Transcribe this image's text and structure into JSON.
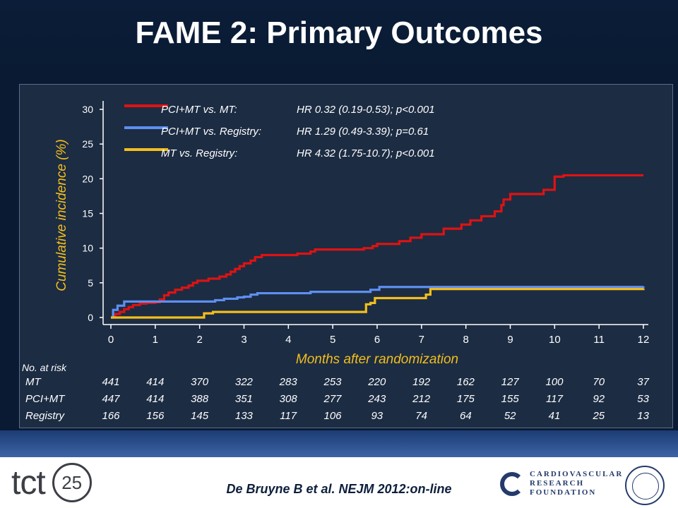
{
  "title": "FAME 2: Primary Outcomes",
  "colors": {
    "red": "#dd1313",
    "blue": "#5e8ff0",
    "gold": "#f3be1c",
    "axis_label": "#f3be1c",
    "text": "#ffffff"
  },
  "legend": [
    {
      "series": "PCI+MT vs. MT:",
      "stat": "HR 0.32 (0.19-0.53); p<0.001",
      "color": "#dd1313"
    },
    {
      "series": "PCI+MT vs. Registry:",
      "stat": "HR 1.29 (0.49-3.39); p=0.61",
      "color": "#5e8ff0"
    },
    {
      "series": "MT vs. Registry:",
      "stat": "HR 4.32 (1.75-10.7); p<0.001",
      "color": "#f3be1c"
    }
  ],
  "chart_data": {
    "type": "line",
    "xlabel": "Months after randomization",
    "ylabel": "Cumulative incidence (%)",
    "xlim": [
      0,
      12
    ],
    "ylim": [
      0,
      30
    ],
    "x_ticks": [
      "0",
      "1",
      "2",
      "3",
      "4",
      "5",
      "6",
      "7",
      "8",
      "9",
      "10",
      "11",
      "12"
    ],
    "y_ticks": [
      "0",
      "5",
      "10",
      "15",
      "20",
      "25",
      "30"
    ],
    "series": [
      {
        "name": "MT",
        "color": "#dd1313",
        "points": [
          [
            0,
            0
          ],
          [
            0.1,
            0.5
          ],
          [
            0.2,
            0.8
          ],
          [
            0.3,
            1.2
          ],
          [
            0.4,
            1.5
          ],
          [
            0.5,
            1.8
          ],
          [
            0.65,
            2.0
          ],
          [
            0.8,
            2.1
          ],
          [
            1.0,
            2.2
          ],
          [
            1.1,
            2.6
          ],
          [
            1.2,
            3.2
          ],
          [
            1.3,
            3.6
          ],
          [
            1.45,
            4.0
          ],
          [
            1.6,
            4.3
          ],
          [
            1.75,
            4.6
          ],
          [
            1.85,
            5.0
          ],
          [
            1.95,
            5.3
          ],
          [
            2.2,
            5.6
          ],
          [
            2.45,
            5.9
          ],
          [
            2.6,
            6.2
          ],
          [
            2.7,
            6.6
          ],
          [
            2.8,
            7.0
          ],
          [
            2.9,
            7.4
          ],
          [
            3.0,
            7.8
          ],
          [
            3.15,
            8.2
          ],
          [
            3.25,
            8.7
          ],
          [
            3.4,
            9.0
          ],
          [
            4.2,
            9.2
          ],
          [
            4.5,
            9.5
          ],
          [
            4.6,
            9.8
          ],
          [
            5.7,
            10.0
          ],
          [
            5.9,
            10.3
          ],
          [
            6.0,
            10.6
          ],
          [
            6.5,
            11.0
          ],
          [
            6.75,
            11.5
          ],
          [
            7.0,
            12.0
          ],
          [
            7.5,
            12.8
          ],
          [
            7.9,
            13.4
          ],
          [
            8.1,
            14.0
          ],
          [
            8.35,
            14.6
          ],
          [
            8.65,
            15.3
          ],
          [
            8.8,
            16.2
          ],
          [
            8.85,
            17.0
          ],
          [
            9.0,
            17.8
          ],
          [
            9.75,
            18.4
          ],
          [
            10.0,
            20.3
          ],
          [
            10.2,
            20.5
          ],
          [
            12.0,
            20.5
          ]
        ]
      },
      {
        "name": "PCI+MT",
        "color": "#5e8ff0",
        "points": [
          [
            0,
            0
          ],
          [
            0.05,
            1.1
          ],
          [
            0.15,
            1.7
          ],
          [
            0.3,
            2.3
          ],
          [
            2.35,
            2.5
          ],
          [
            2.55,
            2.7
          ],
          [
            2.85,
            2.9
          ],
          [
            3.0,
            3.0
          ],
          [
            3.15,
            3.3
          ],
          [
            3.3,
            3.5
          ],
          [
            4.5,
            3.7
          ],
          [
            5.85,
            4.0
          ],
          [
            6.05,
            4.4
          ],
          [
            12.0,
            4.5
          ]
        ]
      },
      {
        "name": "Registry",
        "color": "#f3be1c",
        "points": [
          [
            0,
            0
          ],
          [
            2.1,
            0.6
          ],
          [
            2.3,
            0.8
          ],
          [
            5.75,
            1.9
          ],
          [
            5.85,
            2.1
          ],
          [
            5.95,
            2.8
          ],
          [
            7.1,
            3.3
          ],
          [
            7.2,
            4.1
          ],
          [
            12.0,
            4.2
          ]
        ]
      }
    ]
  },
  "risk_table": {
    "header": "No. at risk",
    "rows": [
      {
        "label": "MT",
        "values": [
          "441",
          "414",
          "370",
          "322",
          "283",
          "253",
          "220",
          "192",
          "162",
          "127",
          "100",
          "70",
          "37"
        ]
      },
      {
        "label": "PCI+MT",
        "values": [
          "447",
          "414",
          "388",
          "351",
          "308",
          "277",
          "243",
          "212",
          "175",
          "155",
          "117",
          "92",
          "53"
        ]
      },
      {
        "label": "Registry",
        "values": [
          "166",
          "156",
          "145",
          "133",
          "117",
          "106",
          "93",
          "74",
          "64",
          "52",
          "41",
          "25",
          "13"
        ]
      }
    ]
  },
  "footer": {
    "logo_word": "tct",
    "logo_number": "25",
    "citation": "De Bruyne B et al. NEJM 2012:on-line",
    "org_line1": "CARDIOVASCULAR",
    "org_line2": "RESEARCH",
    "org_line3": "FOUNDATION",
    "org_icon": "crf-logo-icon",
    "seal_icon": "society-seal-icon"
  }
}
